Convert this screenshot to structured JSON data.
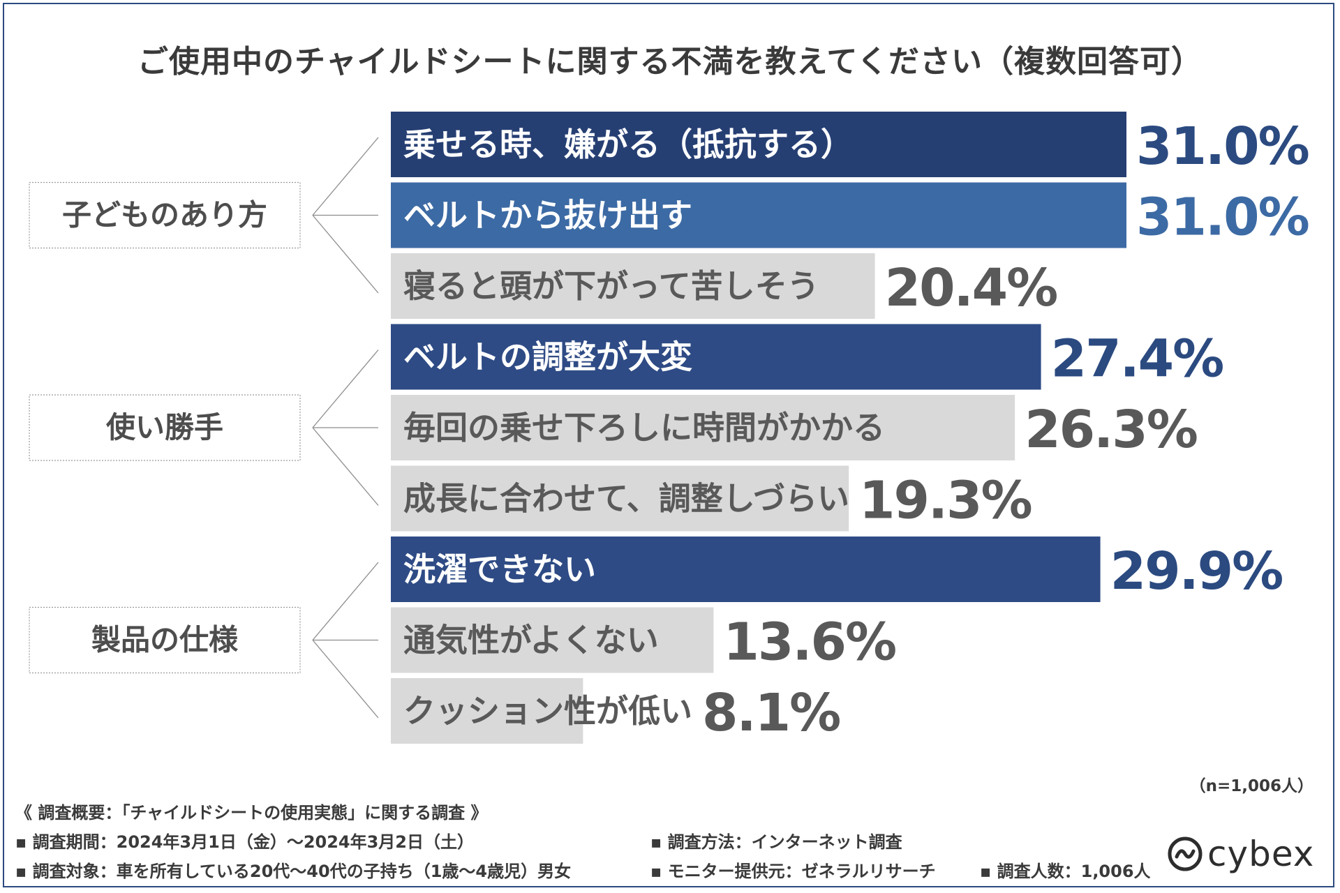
{
  "title": "ご使用中のチャイルドシートに関する不満を教えてください（複数回答可）",
  "n_note": "（n=1,006人）",
  "footer": {
    "heading": "《 調査概要：「チャイルドシートの使用実態」に関する調査 》",
    "period": "▪ 調査期間：2024年3月1日（金）～2024年3月2日（土）",
    "method": "▪ 調査方法：インターネット調査",
    "target": "▪ 調査対象：車を所有している20代～40代の子持ち（1歳～4歳児）男女",
    "provider": "▪ モニター提供元：ゼネラルリサーチ",
    "count": "▪ 調査人数：1,006人"
  },
  "logo": {
    "text": "cybex",
    "icon": "cybex-logo-icon"
  },
  "colors": {
    "dark_navy": "#263f73",
    "navy": "#2e4b85",
    "steel_blue": "#3c6aa4",
    "gray_bar": "#d9d9d9",
    "gray_text": "#595959",
    "value_navy": "#2b4a80",
    "value_blue": "#3c6aa4",
    "value_gray": "#595959"
  },
  "chart_data": {
    "type": "bar",
    "orientation": "horizontal",
    "unit": "%",
    "xlim": [
      0,
      31.0
    ],
    "groups": [
      {
        "name": "子どものあり方",
        "items": [
          {
            "label": "乗せる時、嫌がる（抵抗する）",
            "value": 31.0,
            "display": "31.0%",
            "style": "dark"
          },
          {
            "label": "ベルトから抜け出す",
            "value": 31.0,
            "display": "31.0%",
            "style": "blue"
          },
          {
            "label": "寝ると頭が下がって苦しそう",
            "value": 20.4,
            "display": "20.4%",
            "style": "gray"
          }
        ]
      },
      {
        "name": "使い勝手",
        "items": [
          {
            "label": "ベルトの調整が大変",
            "value": 27.4,
            "display": "27.4%",
            "style": "navy"
          },
          {
            "label": "毎回の乗せ下ろしに時間がかかる",
            "value": 26.3,
            "display": "26.3%",
            "style": "gray"
          },
          {
            "label": "成長に合わせて、調整しづらい",
            "value": 19.3,
            "display": "19.3%",
            "style": "gray"
          }
        ]
      },
      {
        "name": "製品の仕様",
        "items": [
          {
            "label": "洗濯できない",
            "value": 29.9,
            "display": "29.9%",
            "style": "navy"
          },
          {
            "label": "通気性がよくない",
            "value": 13.6,
            "display": "13.6%",
            "style": "gray"
          },
          {
            "label": "クッション性が低い",
            "value": 8.1,
            "display": "8.1%",
            "style": "gray"
          }
        ]
      }
    ]
  }
}
